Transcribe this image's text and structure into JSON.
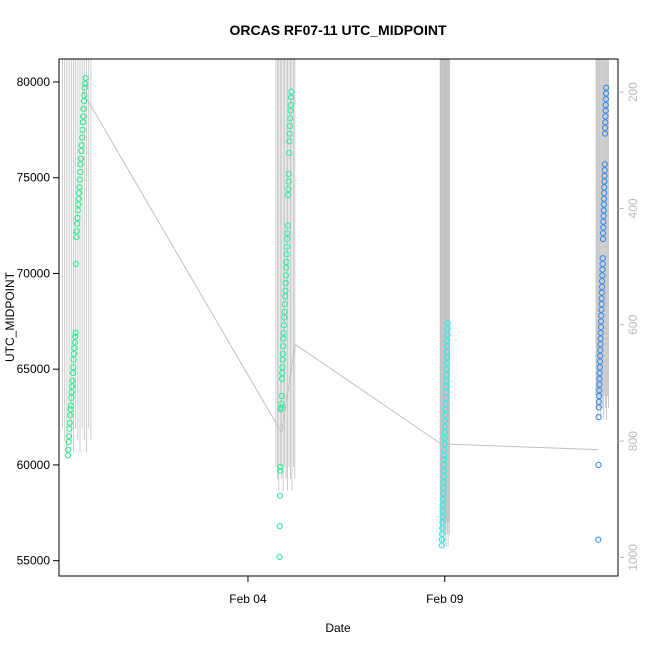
{
  "chart_data": {
    "type": "scatter",
    "title": "ORCAS RF07-11 UTC_MIDPOINT",
    "xlabel": "Date",
    "ylabel": "UTC_MIDPOINT",
    "x_ticks": [
      {
        "label": "Feb 04",
        "day": 35
      },
      {
        "label": "Feb 09",
        "day": 40
      }
    ],
    "xlim_days": [
      30.2,
      44.4
    ],
    "ylim": [
      54200,
      81200
    ],
    "y_ticks": [
      55000,
      60000,
      65000,
      70000,
      75000,
      80000
    ],
    "right_axis": {
      "ylim_inverted": [
        1032,
        143
      ],
      "ticks": [
        200,
        400,
        600,
        800,
        1000
      ],
      "color": "#bbbbbb"
    },
    "track_line_color": "#c0c0c0",
    "grid": false,
    "series": [
      {
        "color": "#22ee88",
        "day": 30.65,
        "day_spread": 0.45,
        "values": [
          60500,
          60800,
          61200,
          61500,
          61900,
          62200,
          62600,
          62900,
          63100,
          63500,
          63800,
          64100,
          64400,
          64800,
          65100,
          65500,
          65800,
          66100,
          66400,
          66700,
          66900,
          70500,
          71900,
          72200,
          72600,
          72900,
          73300,
          73600,
          73900,
          74200,
          74500,
          74900,
          75300,
          75700,
          76000,
          76400,
          76700,
          77100,
          77500,
          77900,
          78200,
          78600,
          79000,
          79300,
          79700,
          79900,
          80200
        ]
      },
      {
        "color": "#22ee99",
        "day": 35.95,
        "day_spread": 0.3,
        "values": [
          55200,
          56800,
          58400,
          59700,
          59900,
          62900,
          63000,
          63200,
          63600,
          64500,
          64800,
          65100,
          65500,
          65800,
          66200,
          66600,
          66900,
          67300,
          67700,
          68000,
          68400,
          68800,
          69100,
          69500,
          69900,
          70300,
          70600,
          71000,
          71400,
          71800,
          72100,
          72500,
          74100,
          74400,
          74800,
          75200,
          76300,
          76900,
          77300,
          77700,
          78100,
          78500,
          78800,
          79200,
          79500
        ]
      },
      {
        "color": "#22eeee",
        "day": 40.0,
        "day_spread": 0.15,
        "values": [
          55800,
          56100,
          56400,
          56700,
          57000,
          57300,
          57600,
          57900,
          58200,
          58500,
          58800,
          59100,
          59400,
          59700,
          60000,
          60300,
          60500,
          60800,
          61100,
          61400,
          61700,
          62000,
          62300,
          62600,
          62900,
          63200,
          63500,
          63800,
          64100,
          64400,
          64700,
          65000,
          65300,
          65600,
          65900,
          66200,
          66500,
          66800,
          67100,
          67400
        ]
      },
      {
        "color": "#3388ee",
        "day": 44.0,
        "day_spread": 0.2,
        "values": [
          56100,
          60000,
          62500,
          63000,
          63300,
          63600,
          63900,
          64200,
          64500,
          64800,
          65100,
          65400,
          65700,
          66000,
          66300,
          66600,
          66900,
          67200,
          67500,
          67800,
          68100,
          68400,
          68700,
          69000,
          69300,
          69600,
          69900,
          70200,
          70500,
          70800,
          71800,
          72100,
          72400,
          72700,
          73000,
          73300,
          73600,
          73900,
          74200,
          74500,
          74800,
          75100,
          75400,
          75700,
          77300,
          77600,
          77900,
          78200,
          78500,
          78800,
          79100,
          79400,
          79700
        ]
      }
    ],
    "track_polyline": [
      {
        "day": 30.8,
        "value": 79500
      },
      {
        "day": 35.85,
        "value": 61700
      },
      {
        "day": 36.2,
        "value": 66300
      },
      {
        "day": 39.9,
        "value": 61100
      },
      {
        "day": 43.9,
        "value": 60800
      }
    ]
  }
}
